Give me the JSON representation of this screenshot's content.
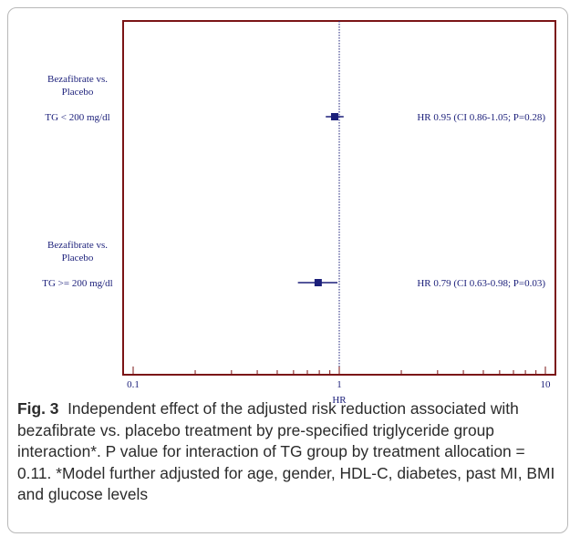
{
  "chart_data": {
    "type": "forest",
    "xlabel": "HR",
    "xscale": "log",
    "xlim": [
      0.1,
      10
    ],
    "reference_line": 1,
    "x_tick_labels": [
      "0.1",
      "1",
      "10"
    ],
    "rows": [
      {
        "label_lines": [
          "Bezafibrate vs.",
          "Placebo"
        ],
        "group": "TG < 200 mg/dl",
        "hr": 0.95,
        "ci_low": 0.86,
        "ci_high": 1.05,
        "annotation": "HR 0.95 (CI 0.86-1.05; P=0.28)"
      },
      {
        "label_lines": [
          "Bezafibrate vs.",
          "Placebo"
        ],
        "group": "TG >= 200 mg/dl",
        "hr": 0.79,
        "ci_low": 0.63,
        "ci_high": 0.98,
        "annotation": "HR 0.79 (CI 0.63-0.98; P=0.03)"
      }
    ],
    "colors": {
      "frame": "#7b1416",
      "marker": "#1b1f7a",
      "text": "#1b1f7a",
      "ticks": "#7b1416"
    }
  },
  "caption": {
    "fig_label": "Fig. 3",
    "text": "Independent effect of the adjusted risk reduction associated with bezafibrate vs. placebo treatment by pre-specified triglyceride group interaction*. P value for interaction of TG group by treatment allocation = 0.11. *Model further adjusted for age, gender, HDL-C, diabetes, past MI, BMI and glucose levels"
  }
}
